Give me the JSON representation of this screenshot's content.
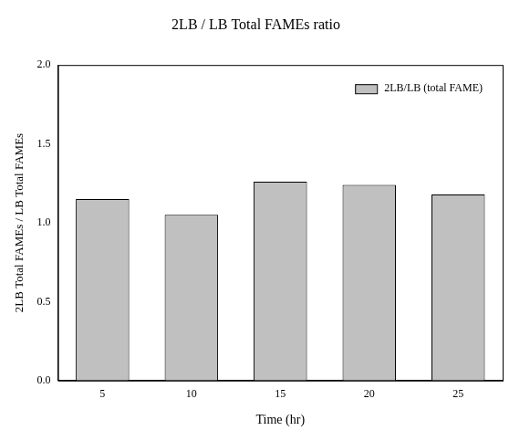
{
  "chart_data": {
    "type": "bar",
    "title": "2LB / LB Total FAMEs ratio",
    "x_label": "Time (hr)",
    "y_label": "2LB Total FAMEs / LB Total FAMEs",
    "categories": [
      5,
      10,
      15,
      20,
      25
    ],
    "series": [
      {
        "name": "2LB/LB (total FAME)",
        "color": "#c0c0c0",
        "values": [
          1.15,
          1.05,
          1.26,
          1.24,
          1.18
        ]
      }
    ],
    "ylim": [
      0,
      2
    ],
    "yticks": [
      {
        "value": 0,
        "label": "0.0"
      },
      0.5,
      {
        "value": 1,
        "label": "1.0"
      },
      1.5,
      {
        "value": 2,
        "label": "2.0"
      }
    ],
    "grid": false,
    "legend": "upper right"
  }
}
